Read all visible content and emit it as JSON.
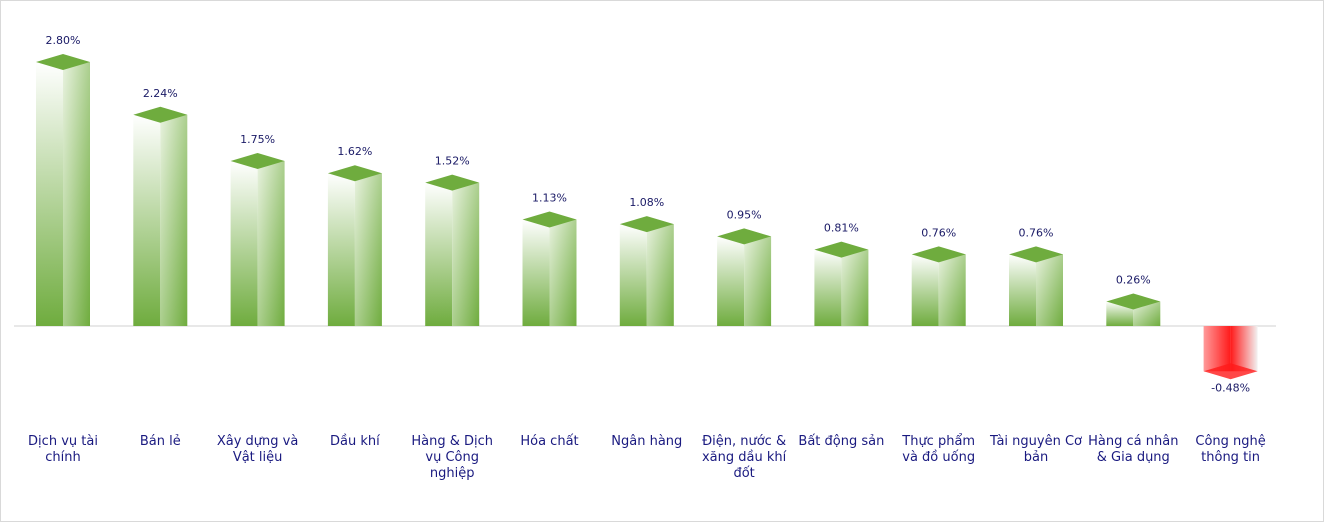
{
  "chart_data": {
    "type": "bar",
    "categories": [
      "Dịch vụ tài chính",
      "Bán lẻ",
      "Xây dựng và Vật liệu",
      "Dầu khí",
      "Hàng & Dịch vụ Công nghiệp",
      "Hóa chất",
      "Ngân hàng",
      "Điện, nước & xăng dầu khí đốt",
      "Bất động sản",
      "Thực phẩm và đồ uống",
      "Tài nguyên Cơ bản",
      "Hàng cá nhân & Gia dụng",
      "Công nghệ thông tin"
    ],
    "values": [
      2.8,
      2.24,
      1.75,
      1.62,
      1.52,
      1.13,
      1.08,
      0.95,
      0.81,
      0.76,
      0.76,
      0.26,
      -0.48
    ],
    "value_labels": [
      "2.80%",
      "2.24%",
      "1.75%",
      "1.62%",
      "1.52%",
      "1.13%",
      "1.08%",
      "0.95%",
      "0.81%",
      "0.76%",
      "0.76%",
      "0.26%",
      "-0.48%"
    ],
    "color": "#6fac3e",
    "negative_color": "#ff1a1a"
  }
}
